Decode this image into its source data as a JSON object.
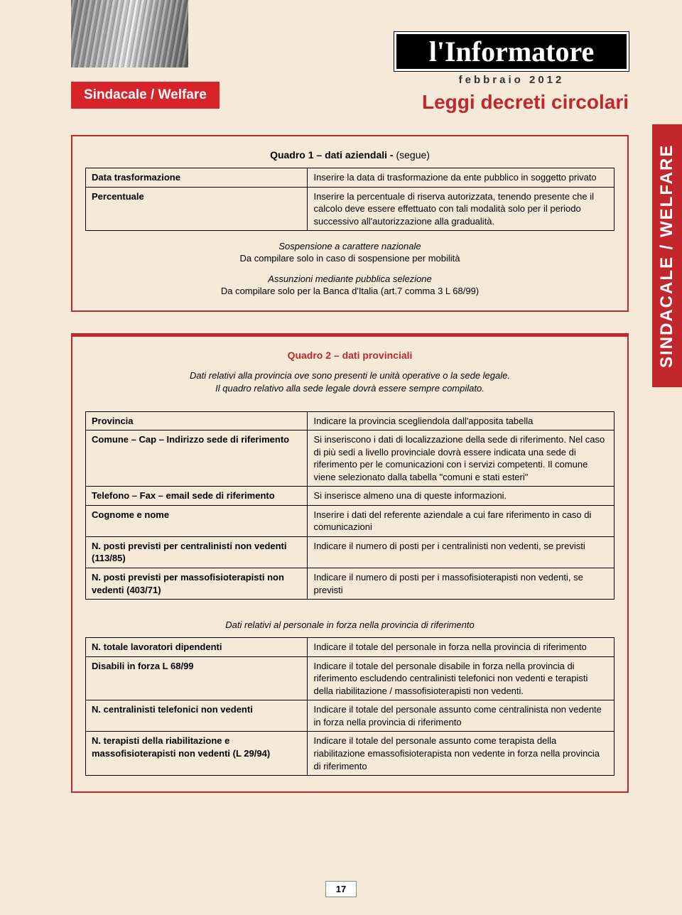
{
  "colors": {
    "page_bg": "#f5e9d8",
    "red": "#c1272d",
    "tab_red": "#d6242a",
    "black": "#000000",
    "white": "#ffffff"
  },
  "header": {
    "section_tab": "Sindacale / Welfare",
    "logo": "l'Informatore",
    "date": "febbraio 2012",
    "main_title": "Leggi decreti circolari",
    "vertical_tab": "SINDACALE / WELFARE"
  },
  "quadro1": {
    "title_bold": "Quadro 1 – dati aziendali - ",
    "title_rest": "(segue)",
    "rows": [
      {
        "label": "Data trasformazione",
        "desc": "Inserire la data di trasformazione da ente pubblico in soggetto privato"
      },
      {
        "label": "Percentuale",
        "desc": "Inserire la percentuale di riserva autorizzata, tenendo presente che il calcolo deve essere effettuato con tali modalità solo per il periodo successivo all'autorizzazione alla gradualità."
      }
    ],
    "sub1_head": "Sospensione a carattere nazionale",
    "sub1_text": "Da compilare solo in caso di sospensione per mobilità",
    "sub2_head": "Assunzioni mediante pubblica selezione",
    "sub2_text": "Da compilare solo per la Banca d'Italia (art.7 comma 3 L 68/99)"
  },
  "quadro2": {
    "title": "Quadro 2 – dati provinciali",
    "intro_line1": "Dati relativi alla provincia ove sono presenti le unità operative o la sede legale.",
    "intro_line2": "Il quadro relativo alla sede legale dovrà essere sempre compilato.",
    "table1": [
      {
        "label": "Provincia",
        "desc": "Indicare la provincia scegliendola dall'apposita tabella"
      },
      {
        "label": "Comune – Cap – Indirizzo sede di riferimento",
        "desc": "Si inseriscono i dati di localizzazione della sede di riferimento. Nel caso di più sedi a livello provinciale dovrà essere indicata una sede di riferimento per le comunicazioni con i servizi competenti. Il comune viene selezionato dalla tabella \"comuni e stati esteri\""
      },
      {
        "label": "Telefono – Fax – email sede di riferimento",
        "desc": "Si inserisce almeno una di queste informazioni."
      },
      {
        "label": "Cognome e nome",
        "desc": "Inserire i dati del referente aziendale a cui fare riferimento in caso di comunicazioni"
      },
      {
        "label": "N. posti previsti per centralinisti non vedenti (113/85)",
        "desc": "Indicare il numero di posti per i centralinisti non vedenti, se previsti"
      },
      {
        "label": "N. posti previsti per massofisioterapisti non vedenti (403/71)",
        "desc": "Indicare il numero di posti per i massofisioterapisti non vedenti, se previsti"
      }
    ],
    "section2_head": "Dati relativi al personale in forza nella provincia di riferimento",
    "table2": [
      {
        "label": "N. totale lavoratori dipendenti",
        "desc": "Indicare il totale del personale in forza nella provincia di riferimento"
      },
      {
        "label": "Disabili in forza L 68/99",
        "desc": "Indicare il totale del personale disabile in forza nella provincia di riferimento escludendo centralinisti telefonici non vedenti e terapisti della riabilitazione / massofisioterapisti non vedenti."
      },
      {
        "label": "N. centralinisti telefonici non vedenti",
        "desc": "Indicare il totale del personale assunto come centralinista non vedente in forza nella provincia di riferimento"
      },
      {
        "label": "N. terapisti della riabilitazione e massofisioterapisti non vedenti (L 29/94)",
        "desc": "Indicare il totale del personale assunto come terapista della riabilitazione emassofisioterapista non vedente in forza nella provincia di riferimento"
      }
    ]
  },
  "page_number": "17"
}
